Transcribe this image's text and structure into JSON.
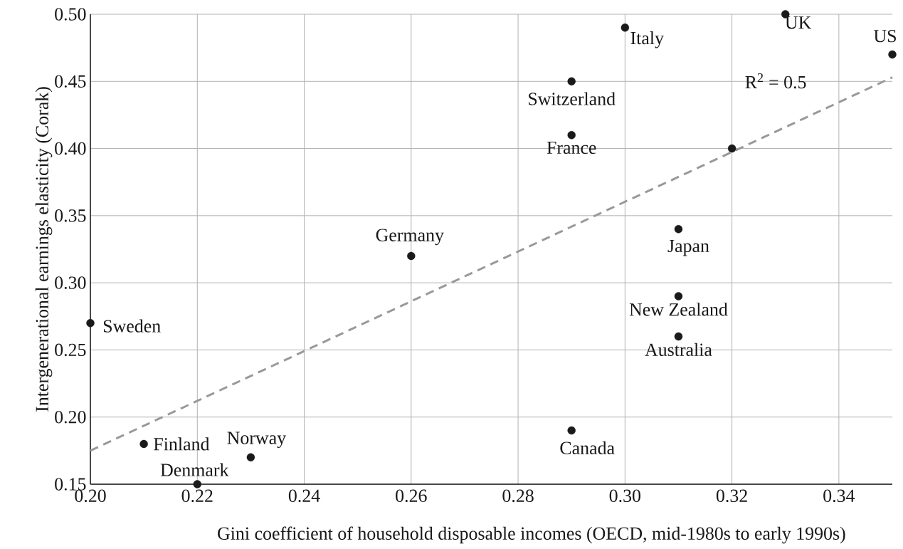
{
  "chart_data": {
    "type": "scatter",
    "xlabel": "Gini coefficient of household disposable incomes (OECD, mid-1980s to early 1990s)",
    "ylabel": "Intergenerational earnings elasticity (Corak)",
    "series": [
      {
        "color": "#1a1a1a",
        "marker": "circle",
        "x": [
          0.2,
          0.21,
          0.22,
          0.23,
          0.26,
          0.29,
          0.29,
          0.29,
          0.3,
          0.32,
          0.31,
          0.31,
          0.31,
          0.33,
          0.35
        ],
        "values": [
          0.27,
          0.18,
          0.15,
          0.17,
          0.32,
          0.19,
          0.41,
          0.45,
          0.49,
          0.4,
          0.34,
          0.29,
          0.26,
          0.5,
          0.47
        ]
      },
      {
        "type": "line",
        "color": "#999999",
        "marker": "none",
        "line_style": "dashed",
        "x": [
          0.2,
          0.35
        ],
        "values": [
          0.175,
          0.453
        ]
      }
    ],
    "xlim": [
      0.2,
      0.35
    ],
    "ylim": [
      0.15,
      0.5
    ],
    "xticks": [
      {
        "value": 0.2,
        "label": "0.20"
      },
      {
        "value": 0.22,
        "label": "0.22"
      },
      {
        "value": 0.24,
        "label": "0.24"
      },
      {
        "value": 0.26,
        "label": "0.26"
      },
      {
        "value": 0.28,
        "label": "0.28"
      },
      {
        "value": 0.3,
        "label": "0.30"
      },
      {
        "value": 0.32,
        "label": "0.32"
      },
      {
        "value": 0.34,
        "label": "0.34"
      }
    ],
    "yticks": [
      0.15,
      {
        "value": 0.2,
        "label": "0.20"
      },
      0.25,
      {
        "value": 0.3,
        "label": "0.30"
      },
      0.35,
      {
        "value": 0.4,
        "label": "0.40"
      },
      0.45,
      {
        "value": 0.5,
        "label": "0.50"
      }
    ],
    "grid": true,
    "annotations": [
      {
        "text": "Sweden",
        "x": 0.2,
        "y": 0.27
      },
      {
        "text": "Finland",
        "x": 0.21,
        "y": 0.18
      },
      {
        "text": "Denmark",
        "x": 0.22,
        "y": 0.15
      },
      {
        "text": "Norway",
        "x": 0.23,
        "y": 0.17
      },
      {
        "text": "Germany",
        "x": 0.26,
        "y": 0.32
      },
      {
        "text": "Canada",
        "x": 0.29,
        "y": 0.19
      },
      {
        "text": "France",
        "x": 0.29,
        "y": 0.41
      },
      {
        "text": "Switzerland",
        "x": 0.29,
        "y": 0.45
      },
      {
        "text": "Italy",
        "x": 0.3,
        "y": 0.49
      },
      {
        "text": "Japan",
        "x": 0.31,
        "y": 0.34
      },
      {
        "text": "New Zealand",
        "x": 0.31,
        "y": 0.29
      },
      {
        "text": "Australia",
        "x": 0.31,
        "y": 0.26
      },
      {
        "text": "UK",
        "x": 0.33,
        "y": 0.5
      },
      {
        "text": "US",
        "x": 0.35,
        "y": 0.47
      },
      "R$^{2}$ = 0.5"
    ]
  }
}
